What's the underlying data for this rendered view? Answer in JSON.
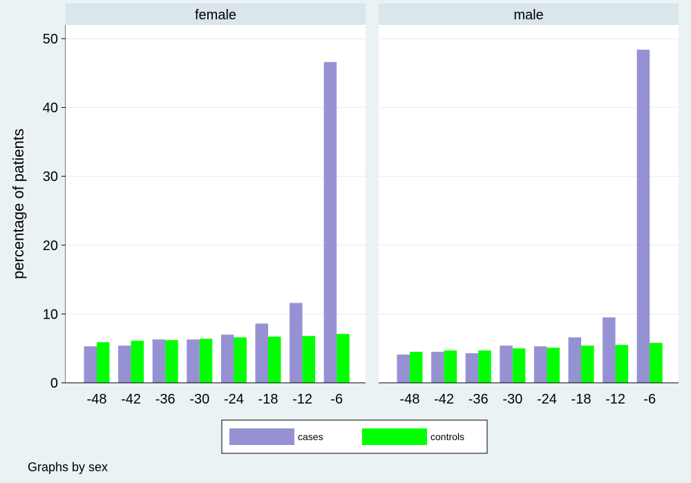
{
  "chart_data": {
    "type": "bar",
    "ylabel": "percentage of patients",
    "ylim": [
      0,
      52
    ],
    "yticks": [
      0,
      10,
      20,
      30,
      40,
      50
    ],
    "categories": [
      "-48",
      "-42",
      "-36",
      "-30",
      "-24",
      "-18",
      "-12",
      "-6"
    ],
    "grid": true,
    "legend_position": "bottom",
    "series_colors": {
      "cases": "#9591d3",
      "controls": "#00ff00"
    },
    "panels": [
      {
        "title": "female",
        "series": [
          {
            "name": "cases",
            "values": [
              5.3,
              5.4,
              6.3,
              6.3,
              7.0,
              8.6,
              11.6,
              46.6
            ]
          },
          {
            "name": "controls",
            "values": [
              5.9,
              6.1,
              6.2,
              6.4,
              6.6,
              6.7,
              6.8,
              7.1
            ]
          }
        ]
      },
      {
        "title": "male",
        "series": [
          {
            "name": "cases",
            "values": [
              4.1,
              4.5,
              4.3,
              5.4,
              5.3,
              6.6,
              9.5,
              48.4
            ]
          },
          {
            "name": "controls",
            "values": [
              4.5,
              4.7,
              4.7,
              5.0,
              5.1,
              5.4,
              5.5,
              5.8
            ]
          }
        ]
      }
    ],
    "legend": [
      "cases",
      "controls"
    ],
    "note": "Graphs by sex"
  }
}
